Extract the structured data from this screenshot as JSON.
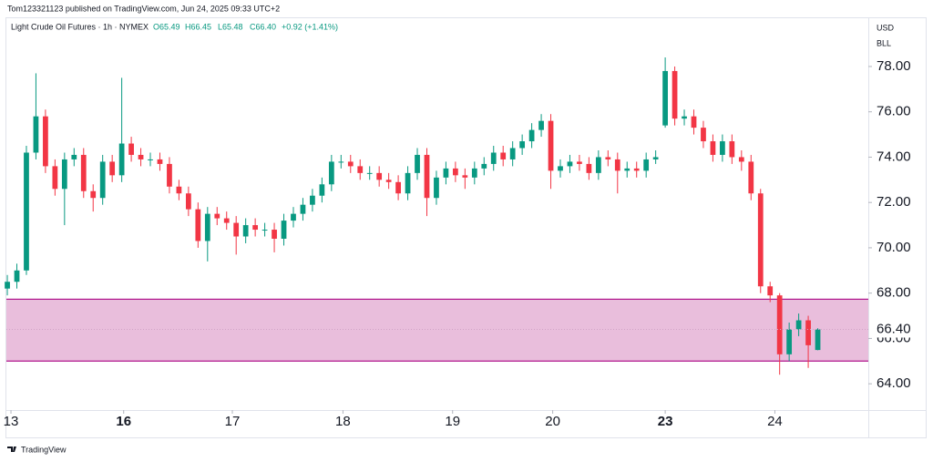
{
  "header": {
    "publisher": "Tom123321123 published on TradingView.com, Jun 24, 2025 09:33 UTC+2",
    "symbol": "Light Crude Oil Futures · 1h · NYMEX",
    "open": "O65.49",
    "high": "H66.45",
    "low": "L65.48",
    "close": "C66.40",
    "change": "+0.92 (+1.41%)",
    "currency": "USD",
    "unit": "BLL"
  },
  "footer": {
    "brand": "TradingView"
  },
  "chart_data": {
    "type": "candlestick",
    "up_color": "#089981",
    "down_color": "#f23645",
    "xlim": [
      -0.1,
      90.3
    ],
    "ylim": [
      62.84,
      80.13
    ],
    "xticks": [
      {
        "value": 0.38,
        "label": "13"
      },
      {
        "value": 12.2,
        "label": "16"
      },
      {
        "value": 23.6,
        "label": "17"
      },
      {
        "value": 35.2,
        "label": "18"
      },
      {
        "value": 46.7,
        "label": "19"
      },
      {
        "value": 57.2,
        "label": "20"
      },
      {
        "value": 69.0,
        "label": "23"
      },
      {
        "value": 80.5,
        "label": "24"
      }
    ],
    "yticks": [
      {
        "value": 64,
        "label": "64.00"
      },
      {
        "value": 66,
        "label": "66.00"
      },
      {
        "value": 68,
        "label": "68.00"
      },
      {
        "value": 70,
        "label": "70.00"
      },
      {
        "value": 72,
        "label": "72.00"
      },
      {
        "value": 74,
        "label": "74.00"
      },
      {
        "value": 76,
        "label": "76.00"
      },
      {
        "value": 78,
        "label": "78.00"
      }
    ],
    "last_price": {
      "value": 66.4,
      "label": "66.40"
    },
    "zone": {
      "low": 65.0,
      "high": 67.73,
      "fill": "#e9bedc",
      "border": "#b21a8f"
    },
    "open": [
      68.2,
      68.5,
      69.0,
      74.2,
      75.8,
      73.6,
      72.6,
      73.9,
      74.1,
      72.5,
      72.2,
      73.8,
      73.2,
      74.6,
      74.1,
      73.9,
      73.9,
      73.7,
      72.7,
      72.4,
      71.7,
      70.3,
      71.5,
      71.3,
      71.1,
      70.5,
      71.0,
      70.8,
      70.8,
      70.4,
      71.2,
      71.5,
      71.9,
      72.3,
      72.8,
      73.8,
      73.8,
      73.6,
      73.3,
      73.3,
      73.0,
      72.9,
      72.4,
      73.3,
      74.1,
      72.2,
      73.1,
      73.5,
      73.2,
      73.1,
      73.5,
      73.7,
      74.2,
      73.9,
      74.4,
      74.7,
      75.2,
      75.6,
      73.4,
      73.6,
      73.8,
      73.7,
      73.3,
      74.0,
      73.9,
      73.4,
      73.5,
      73.4,
      73.9,
      75.4,
      77.8,
      75.7,
      75.8,
      75.3,
      74.7,
      74.1,
      74.7,
      74.0,
      73.8,
      72.4,
      68.3,
      67.9,
      65.3,
      66.4,
      66.8,
      65.49
    ],
    "high": [
      68.8,
      69.3,
      74.5,
      77.7,
      76.1,
      73.9,
      74.2,
      74.4,
      74.4,
      72.8,
      74.1,
      74.1,
      77.5,
      74.9,
      74.4,
      74.2,
      74.2,
      74.0,
      73.0,
      72.7,
      72.0,
      71.8,
      71.8,
      71.6,
      71.4,
      71.3,
      71.3,
      71.1,
      71.1,
      71.5,
      71.8,
      72.2,
      72.6,
      73.1,
      74.1,
      74.1,
      74.1,
      73.9,
      73.6,
      73.6,
      73.3,
      73.2,
      73.6,
      74.4,
      74.4,
      73.4,
      73.8,
      73.8,
      73.5,
      73.8,
      74.0,
      74.5,
      74.5,
      74.7,
      75.0,
      75.5,
      75.9,
      75.9,
      73.9,
      74.1,
      74.1,
      74.0,
      74.3,
      74.3,
      74.2,
      73.8,
      73.8,
      74.2,
      74.3,
      78.4,
      78.0,
      76.1,
      76.1,
      75.6,
      75.0,
      75.0,
      75.0,
      74.3,
      74.1,
      72.6,
      68.5,
      68.0,
      66.7,
      67.1,
      67.0,
      66.45
    ],
    "low": [
      67.9,
      68.2,
      68.8,
      73.9,
      73.3,
      72.3,
      71.0,
      73.6,
      72.2,
      71.6,
      71.9,
      72.9,
      72.9,
      73.8,
      73.6,
      73.6,
      73.4,
      72.4,
      72.1,
      71.4,
      70.0,
      69.4,
      71.0,
      70.8,
      69.7,
      70.2,
      70.5,
      70.5,
      69.8,
      70.1,
      70.9,
      71.2,
      71.6,
      72.0,
      72.5,
      73.5,
      73.3,
      73.0,
      73.0,
      72.7,
      72.6,
      72.1,
      72.1,
      73.0,
      71.4,
      71.9,
      72.8,
      72.9,
      72.6,
      72.8,
      73.2,
      73.4,
      73.6,
      73.6,
      74.1,
      74.4,
      74.9,
      72.6,
      73.1,
      73.3,
      73.4,
      73.0,
      73.0,
      73.6,
      72.4,
      73.1,
      73.1,
      73.1,
      73.7,
      75.3,
      75.4,
      75.4,
      75.0,
      74.4,
      73.8,
      73.8,
      73.7,
      73.4,
      72.1,
      68.0,
      67.6,
      64.4,
      65.0,
      66.1,
      64.7,
      65.48
    ],
    "close": [
      68.5,
      69.0,
      74.2,
      75.8,
      73.6,
      72.6,
      73.9,
      74.1,
      72.5,
      72.2,
      73.8,
      73.2,
      74.6,
      74.1,
      73.9,
      73.9,
      73.7,
      72.7,
      72.4,
      71.7,
      70.3,
      71.5,
      71.3,
      71.1,
      70.5,
      71.0,
      70.8,
      70.8,
      70.4,
      71.2,
      71.5,
      71.9,
      72.3,
      72.8,
      73.8,
      73.8,
      73.6,
      73.3,
      73.3,
      73.0,
      72.9,
      72.4,
      73.3,
      74.1,
      72.2,
      73.1,
      73.5,
      73.2,
      73.1,
      73.5,
      73.7,
      74.2,
      73.9,
      74.4,
      74.7,
      75.2,
      75.6,
      73.4,
      73.6,
      73.8,
      73.7,
      73.3,
      74.0,
      73.9,
      73.4,
      73.5,
      73.4,
      73.9,
      74.0,
      77.8,
      75.7,
      75.8,
      75.3,
      74.7,
      74.1,
      74.7,
      74.0,
      73.8,
      72.4,
      68.3,
      67.9,
      65.3,
      66.4,
      66.8,
      65.7,
      66.4
    ]
  }
}
